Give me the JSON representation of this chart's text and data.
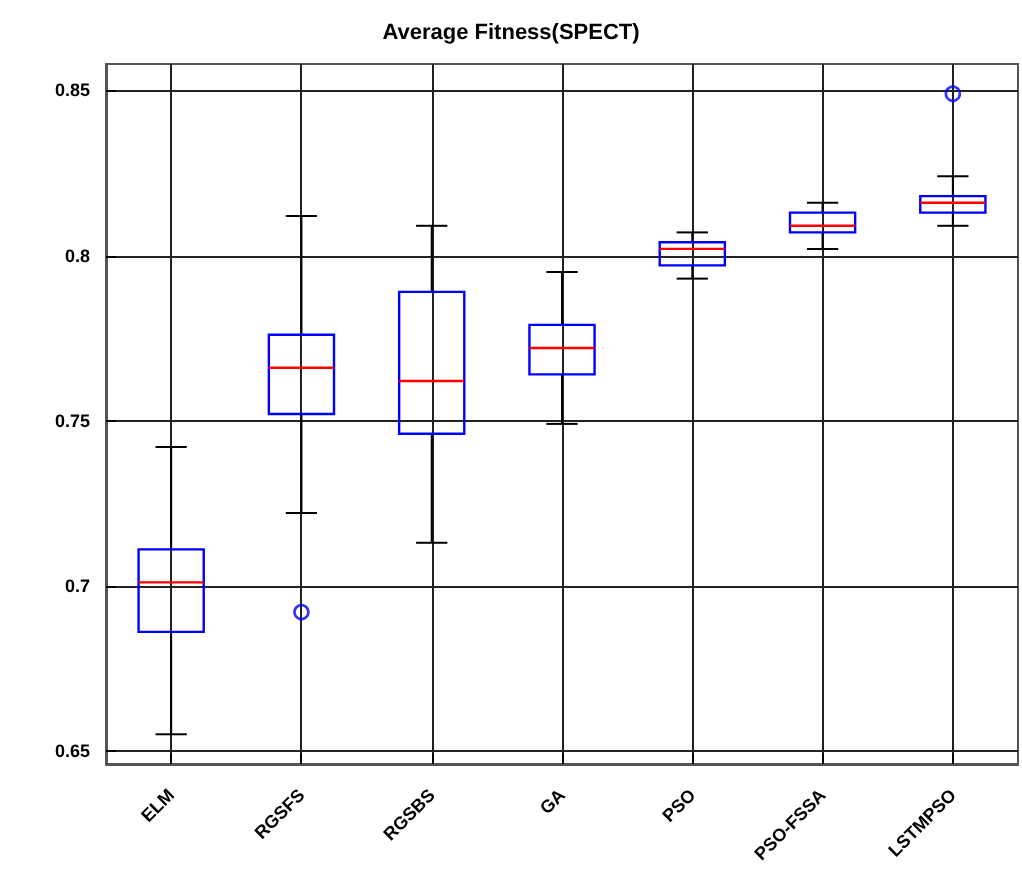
{
  "chart_data": {
    "type": "box",
    "title": "Average Fitness(SPECT)",
    "categories": [
      "ELM",
      "RGSFS",
      "RGSBS",
      "GA",
      "PSO",
      "PSO-FSSA",
      "LSTMPSO"
    ],
    "color": "#0000ff",
    "boxes": [
      {
        "low": 0.655,
        "q1": 0.686,
        "median": 0.701,
        "q3": 0.711,
        "high": 0.742
      },
      {
        "low": 0.722,
        "q1": 0.752,
        "median": 0.766,
        "q3": 0.776,
        "high": 0.812,
        "outliers": [
          0.692
        ]
      },
      {
        "low": 0.713,
        "q1": 0.746,
        "median": 0.762,
        "q3": 0.789,
        "high": 0.809
      },
      {
        "low": 0.749,
        "q1": 0.764,
        "median": 0.772,
        "q3": 0.779,
        "high": 0.795
      },
      {
        "low": 0.793,
        "q1": 0.797,
        "median": 0.802,
        "q3": 0.804,
        "high": 0.807
      },
      {
        "low": 0.802,
        "q1": 0.807,
        "median": 0.809,
        "q3": 0.813,
        "high": 0.816
      },
      {
        "low": 0.809,
        "q1": 0.813,
        "median": 0.816,
        "q3": 0.818,
        "high": 0.824,
        "outliers": [
          0.849
        ]
      }
    ],
    "ylim": [
      0.646,
      0.858
    ],
    "yticks": [
      0.65,
      0.7,
      0.75,
      0.8,
      0.85
    ],
    "grid": true
  }
}
